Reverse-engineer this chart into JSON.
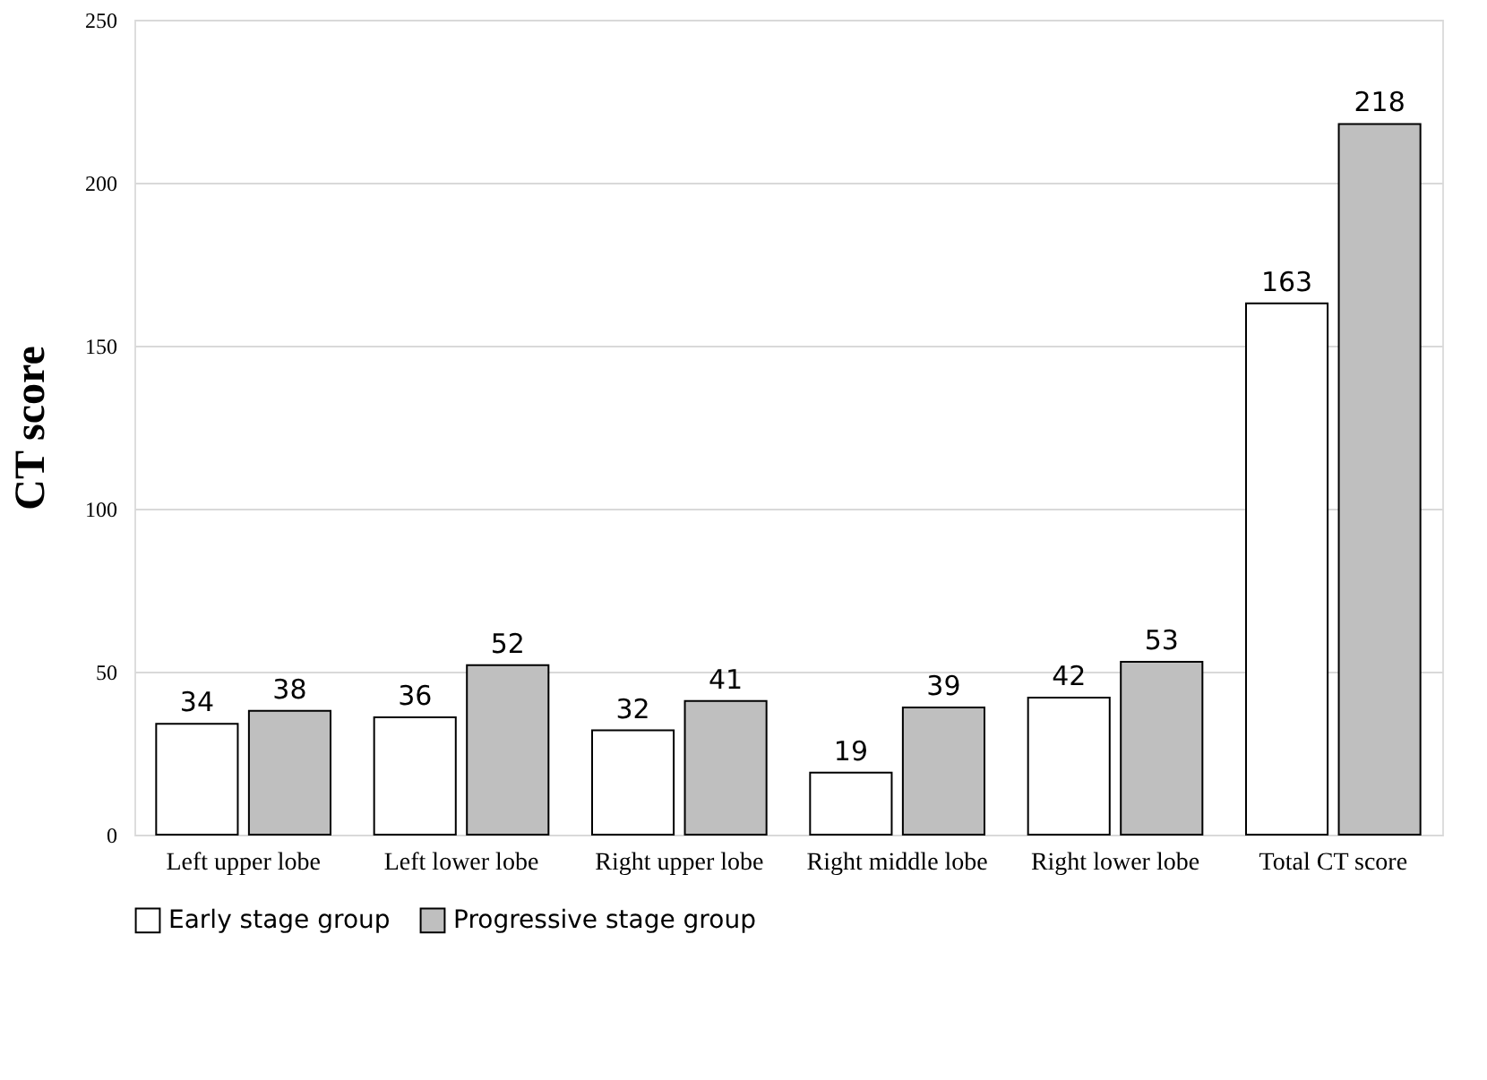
{
  "chart_data": {
    "type": "bar",
    "ylabel": "CT score",
    "categories": [
      "Left upper lobe",
      "Left lower lobe",
      "Right upper lobe",
      "Right middle lobe",
      "Right lower lobe",
      "Total CT score"
    ],
    "series": [
      {
        "name": "Early stage group",
        "color": "#ffffff",
        "values": [
          34,
          36,
          32,
          19,
          42,
          163
        ]
      },
      {
        "name": "Progressive stage group",
        "color": "#bfbfbf",
        "values": [
          38,
          52,
          41,
          39,
          53,
          218
        ]
      }
    ],
    "ylim": [
      0,
      250
    ],
    "yticks": [
      0,
      50,
      100,
      150,
      200,
      250
    ],
    "grid": "y",
    "legend": "bottom",
    "data_labels": true
  }
}
